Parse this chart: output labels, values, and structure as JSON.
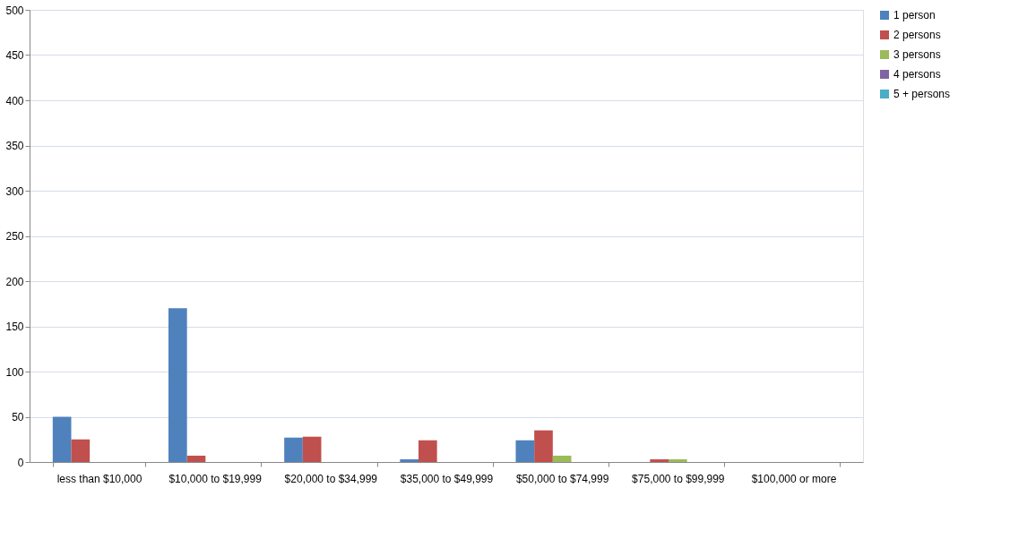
{
  "chart_data": {
    "type": "bar",
    "categories": [
      "less than $10,000",
      "$10,000 to $19,999",
      "$20,000 to $34,999",
      "$35,000 to $49,999",
      "$50,000 to $74,999",
      "$75,000 to $99,999",
      "$100,000 or more"
    ],
    "series": [
      {
        "name": "1 person",
        "color": "#4f81bd",
        "values": [
          50,
          170,
          27,
          3,
          24,
          0,
          0
        ]
      },
      {
        "name": "2 persons",
        "color": "#c0504d",
        "values": [
          25,
          7,
          28,
          24,
          35,
          3,
          0
        ]
      },
      {
        "name": "3 persons",
        "color": "#9bbb59",
        "values": [
          0,
          0,
          0,
          0,
          7,
          3,
          0
        ]
      },
      {
        "name": "4 persons",
        "color": "#8064a2",
        "values": [
          0,
          0,
          0,
          0,
          0,
          0,
          0
        ]
      },
      {
        "name": "5 + persons",
        "color": "#4bacc6",
        "values": [
          0,
          0,
          0,
          0,
          0,
          0,
          0
        ]
      }
    ],
    "ylim": [
      0,
      500
    ],
    "yticks": [
      0,
      50,
      100,
      150,
      200,
      250,
      300,
      350,
      400,
      450,
      500
    ],
    "grid": "y",
    "legend": "right"
  }
}
